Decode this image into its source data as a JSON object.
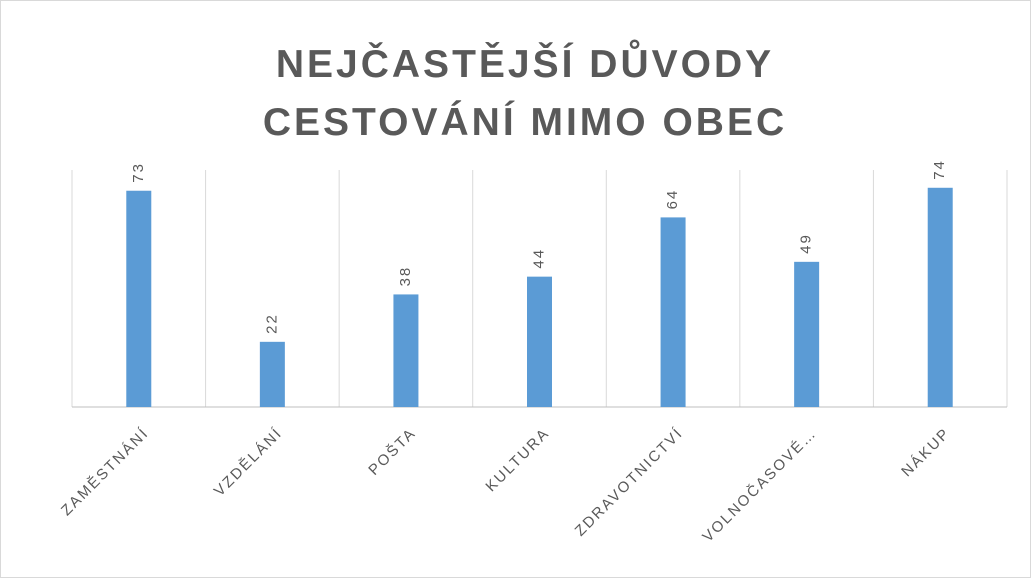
{
  "chart_data": {
    "type": "bar",
    "title": "NEJČASTĚJŠÍ DŮVODY CESTOVÁNÍ MIMO OBEC",
    "categories": [
      "ZAMĚSTNÁNÍ",
      "VZDĚLÁNÍ",
      "POŠTA",
      "KULTURA",
      "ZDRAVOTNICTVÍ",
      "VOLNOČASOVÉ…",
      "NÁKUP"
    ],
    "values": [
      73,
      22,
      38,
      44,
      64,
      49,
      74
    ],
    "color": "#5b9bd5",
    "ylim": [
      0,
      80
    ],
    "grid": true
  }
}
